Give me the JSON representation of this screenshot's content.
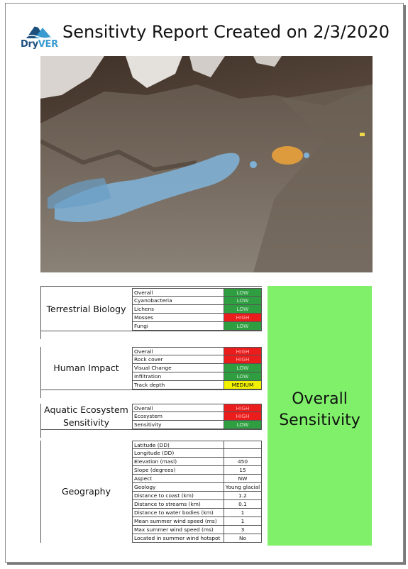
{
  "header": {
    "logo_text_a": "Dry",
    "logo_text_b": "VER",
    "title": "Sensitivty Report Created on 2/3/2020"
  },
  "colors": {
    "low": "#2e9e41",
    "high": "#ea1c1c",
    "medium": "#f2f200",
    "overall_panel": "#80f06a",
    "low_text": "#cfeccf",
    "high_text": "#ffb0b0"
  },
  "sections": [
    {
      "label": "Terrestrial Biology",
      "rows": [
        {
          "label": "Overall",
          "value": "LOW",
          "level": "low"
        },
        {
          "label": "Cyanobacteria",
          "value": "LOW",
          "level": "low"
        },
        {
          "label": "Lichens",
          "value": "LOW",
          "level": "low"
        },
        {
          "label": "Mosses",
          "value": "HIGH",
          "level": "high"
        },
        {
          "label": "Fungi",
          "value": "LOW",
          "level": "low"
        }
      ]
    },
    {
      "label": "Human Impact",
      "rows": [
        {
          "label": "Overall",
          "value": "HIGH",
          "level": "high"
        },
        {
          "label": "Rock cover",
          "value": "HIGH",
          "level": "high"
        },
        {
          "label": "Visual Change",
          "value": "LOW",
          "level": "low"
        },
        {
          "label": "Infiltration",
          "value": "LOW",
          "level": "low"
        },
        {
          "label": "Track depth",
          "value": "MEDIUM",
          "level": "medium"
        }
      ]
    },
    {
      "label": "Aquatic Ecosystem Sensitivity",
      "label_lines": [
        "Aquatic Ecosystem",
        "Sensitivity"
      ],
      "rows": [
        {
          "label": "Overall",
          "value": "HIGH",
          "level": "high"
        },
        {
          "label": "Ecosystem",
          "value": "HIGH",
          "level": "high"
        },
        {
          "label": "Sensitivity",
          "value": "LOW",
          "level": "low"
        }
      ]
    },
    {
      "label": "Geography",
      "rows": [
        {
          "label": "Latitude (DD)",
          "value": "",
          "level": "none"
        },
        {
          "label": "Longitude (DD)",
          "value": "",
          "level": "none"
        },
        {
          "label": "Elevation (masl)",
          "value": "450",
          "level": "none"
        },
        {
          "label": "Slope (degrees)",
          "value": "15",
          "level": "none"
        },
        {
          "label": "Aspect",
          "value": "NW",
          "level": "none"
        },
        {
          "label": "Geology",
          "value": "Young glacial",
          "level": "none"
        },
        {
          "label": "Distance to coast (km)",
          "value": "1.2",
          "level": "none"
        },
        {
          "label": "Distance to streams (km)",
          "value": "0.1",
          "level": "none"
        },
        {
          "label": "Distance to water bodies (km)",
          "value": "1",
          "level": "none"
        },
        {
          "label": "Mean summer wind speed (ms)",
          "value": "1",
          "level": "none"
        },
        {
          "label": "Max summer wind speed (ms)",
          "value": "3",
          "level": "none"
        },
        {
          "label": "Located in summer wind hotspot",
          "value": "No",
          "level": "none"
        }
      ]
    }
  ],
  "overall": {
    "line1": "Overall",
    "line2": "Sensitivity",
    "level": "low"
  }
}
